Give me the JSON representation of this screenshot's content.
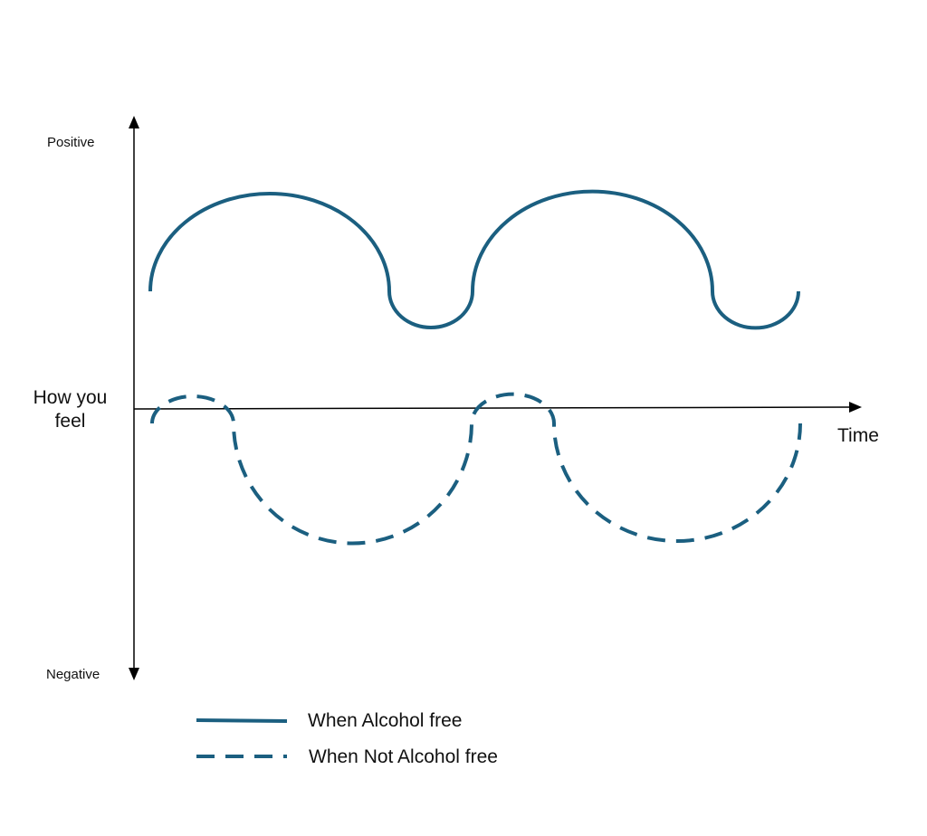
{
  "axis": {
    "top_label": "Positive",
    "bottom_label": "Negative",
    "y_label": "How you feel",
    "x_label": "Time"
  },
  "legend": {
    "items": [
      {
        "label": "When Alcohol free"
      },
      {
        "label": "When Not Alcohol free"
      }
    ]
  }
}
